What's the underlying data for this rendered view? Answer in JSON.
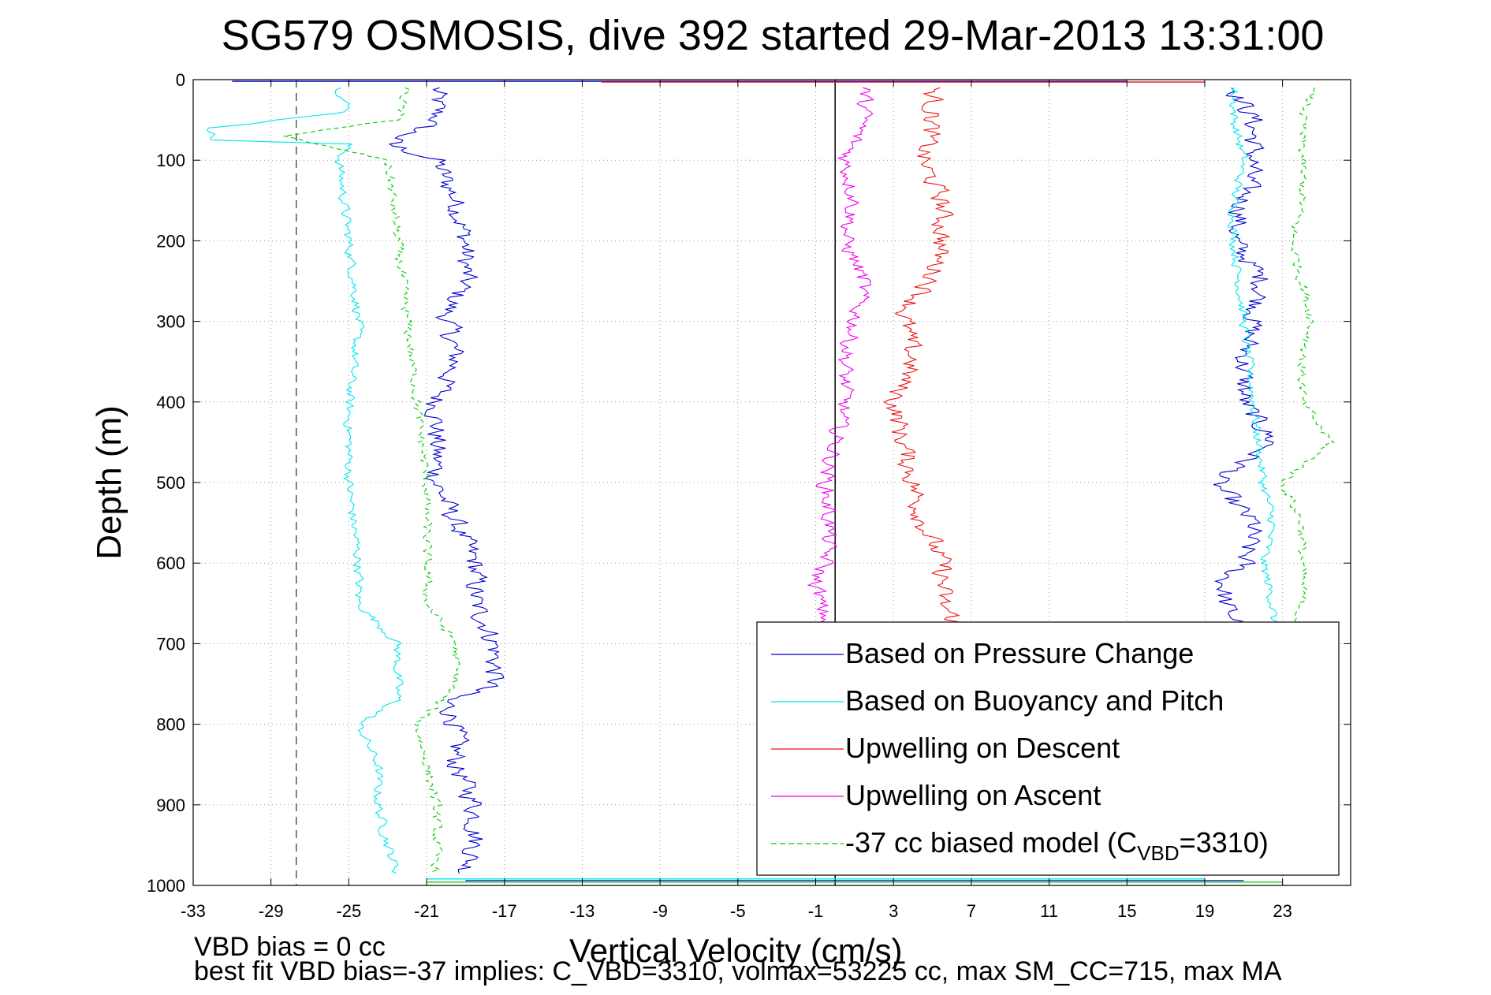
{
  "chart_data": {
    "type": "line",
    "title": "SG579 OSMOSIS, dive 392 started 29-Mar-2013 13:31:00",
    "xlabel": "Vertical Velocity (cm/s)",
    "ylabel": "Depth (m)",
    "xlim": [
      -33,
      26.5
    ],
    "ylim": [
      0,
      1000
    ],
    "y_reversed": true,
    "grid": "dotted",
    "x_ticks": [
      -33,
      -29,
      -25,
      -21,
      -17,
      -13,
      -9,
      -5,
      -1,
      3,
      7,
      11,
      15,
      19,
      23
    ],
    "y_ticks": [
      0,
      100,
      200,
      300,
      400,
      500,
      600,
      700,
      800,
      900,
      1000
    ],
    "reference_lines": [
      {
        "x": 0,
        "style": "solid",
        "color": "#000000"
      },
      {
        "x": -27.7,
        "style": "dashed",
        "color": "#555555"
      }
    ],
    "legend": {
      "position": "bottom-right",
      "entries": [
        {
          "label": "Based on Pressure Change",
          "color": "#0000cc",
          "dash": "solid"
        },
        {
          "label": "Based on Buoyancy and Pitch",
          "color": "#00e5ee",
          "dash": "solid"
        },
        {
          "label": "Upwelling on Descent",
          "color": "#ee1111",
          "dash": "solid"
        },
        {
          "label": "Upwelling on Ascent",
          "color": "#ee00ee",
          "dash": "solid"
        },
        {
          "label_prefix": "-37 cc biased model (C",
          "label_sub": "VBD",
          "label_suffix": "=3310)",
          "color": "#00cc00",
          "dash": "dashed"
        }
      ]
    },
    "series": [
      {
        "name": "Based on Pressure Change",
        "color": "#0000cc",
        "noise": 0.8,
        "descent": {
          "depth": [
            10,
            50,
            80,
            100,
            150,
            200,
            250,
            290,
            350,
            400,
            500,
            550,
            600,
            650,
            700,
            750,
            770,
            800,
            850,
            900,
            950,
            985
          ],
          "velocity": [
            -20.5,
            -20.5,
            -23,
            -20.5,
            -19.5,
            -19,
            -19,
            -20,
            -19.5,
            -20.5,
            -20.5,
            -19.5,
            -18.5,
            -18.5,
            -17.5,
            -17.5,
            -20,
            -19.5,
            -19.5,
            -18.5,
            -18.5,
            -19
          ]
        },
        "ascent": {
          "depth": [
            985,
            950,
            900,
            850,
            800,
            750,
            700,
            650,
            620,
            600,
            550,
            500,
            450,
            400,
            350,
            300,
            250,
            200,
            150,
            100,
            50,
            10
          ],
          "velocity": [
            23,
            22.5,
            22,
            22,
            21.5,
            21.5,
            21.5,
            20,
            20,
            21,
            21.5,
            19.5,
            22.5,
            21,
            21,
            21.5,
            22,
            20.5,
            21,
            21.5,
            21.5,
            20.5
          ]
        }
      },
      {
        "name": "Based on Buoyancy and Pitch",
        "color": "#00e5ee",
        "noise": 0.35,
        "descent": {
          "depth": [
            10,
            40,
            60,
            75,
            80,
            100,
            200,
            300,
            400,
            500,
            600,
            650,
            700,
            770,
            800,
            850,
            900,
            950,
            985
          ],
          "velocity": [
            -25.5,
            -25,
            -32,
            -32,
            -25,
            -25.5,
            -25,
            -24.5,
            -25,
            -25,
            -24.5,
            -24.5,
            -22.5,
            -22.5,
            -24.5,
            -23.5,
            -23.5,
            -23,
            -22.5
          ]
        },
        "ascent": {
          "depth": [
            985,
            900,
            800,
            700,
            650,
            600,
            550,
            500,
            400,
            300,
            200,
            150,
            100,
            50,
            10
          ],
          "velocity": [
            22,
            22,
            22,
            22.5,
            22.5,
            22,
            22.5,
            22,
            21.5,
            21,
            20.5,
            20.5,
            21,
            20.5,
            20.5
          ]
        }
      },
      {
        "name": "Upwelling on Descent",
        "color": "#ee1111",
        "noise": 0.75,
        "descent": {
          "depth": [
            10,
            50,
            100,
            150,
            200,
            250,
            290,
            350,
            400,
            500,
            550,
            600,
            650,
            700,
            750,
            800,
            850,
            900,
            950,
            985
          ],
          "velocity": [
            5,
            5,
            4.5,
            5.5,
            5.5,
            5,
            3.5,
            4,
            3,
            4,
            4.5,
            5.5,
            5.5,
            7,
            7,
            5.5,
            5,
            5.5,
            5,
            5
          ]
        }
      },
      {
        "name": "Upwelling on Ascent",
        "color": "#ee00ee",
        "noise": 0.6,
        "ascent": {
          "depth": [
            985,
            900,
            800,
            700,
            650,
            620,
            600,
            550,
            500,
            450,
            400,
            350,
            300,
            250,
            200,
            150,
            100,
            50,
            10
          ],
          "velocity": [
            0.5,
            0.5,
            0.5,
            0,
            -0.8,
            -1,
            -0.5,
            -0.3,
            -0.5,
            0,
            0.5,
            0.5,
            1,
            1.5,
            0.5,
            1,
            0.5,
            1.5,
            1.5
          ]
        }
      },
      {
        "name": "-37 cc biased model (CVBD=3310)",
        "color": "#00cc00",
        "dash": "6,4",
        "noise": 0.35,
        "descent": {
          "depth": [
            10,
            50,
            70,
            100,
            200,
            300,
            400,
            500,
            600,
            650,
            700,
            750,
            800,
            850,
            900,
            950,
            985
          ],
          "velocity": [
            -22,
            -22.5,
            -28.5,
            -23,
            -22.5,
            -22,
            -21.5,
            -21,
            -21,
            -21,
            -19.5,
            -19.5,
            -21.5,
            -21,
            -20.5,
            -20.5,
            -20.5
          ]
        },
        "ascent": {
          "depth": [
            985,
            900,
            800,
            700,
            650,
            600,
            550,
            500,
            450,
            400,
            350,
            300,
            250,
            200,
            150,
            100,
            50,
            10
          ],
          "velocity": [
            22,
            23,
            23.5,
            23.5,
            24,
            24,
            24,
            23,
            25.5,
            24,
            24,
            24.5,
            24,
            23.5,
            24,
            24,
            24,
            24.5
          ]
        }
      }
    ],
    "surface_spikes": [
      {
        "depth": 2,
        "from": -31,
        "to": 15,
        "color": "#0000cc"
      },
      {
        "depth": 3,
        "from": -12,
        "to": 19,
        "color": "#ee1111"
      },
      {
        "depth": 992,
        "from": -21,
        "to": 19,
        "color": "#00e5ee"
      },
      {
        "depth": 994,
        "from": -19,
        "to": 21,
        "color": "#0000cc"
      },
      {
        "depth": 996,
        "from": -21,
        "to": 23,
        "color": "#00cc00"
      }
    ],
    "annotations": [
      "VBD bias = 0 cc",
      "best fit VBD bias=-37 implies: C_VBD=3310, volmax=53225 cc, max SM_CC=715, max MA"
    ]
  }
}
